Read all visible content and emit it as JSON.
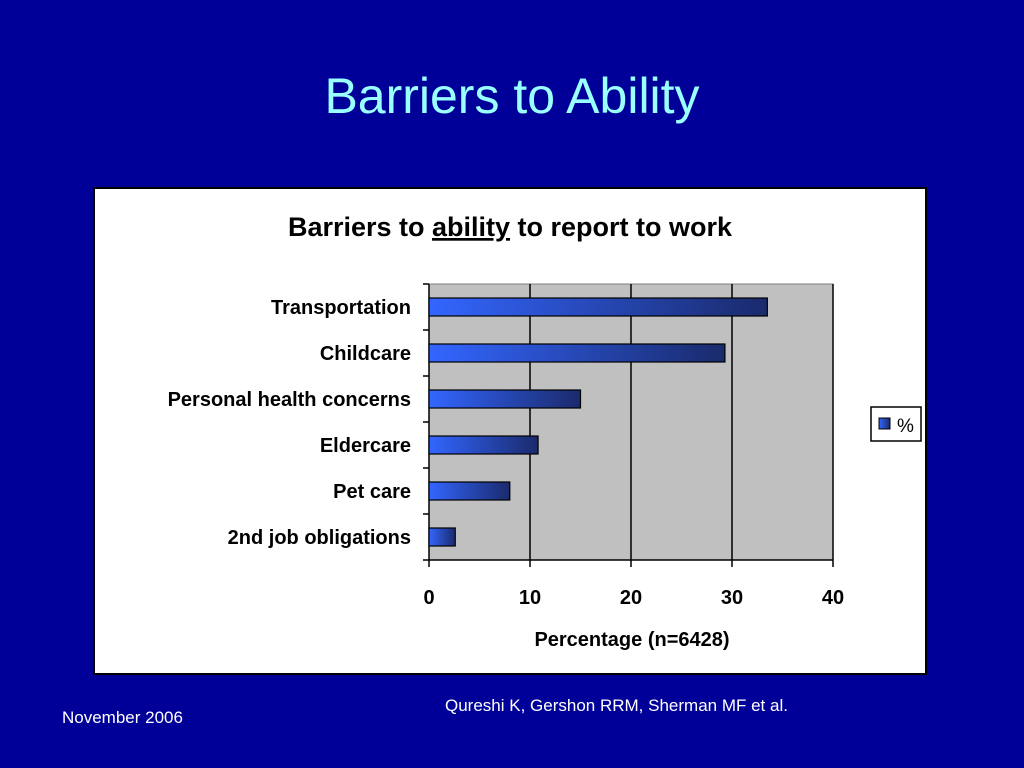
{
  "slide": {
    "title": "Barriers to Ability",
    "date": "November 2006",
    "citation": "Qureshi K, Gershon RRM, Sherman MF et al."
  },
  "chart_data": {
    "type": "bar",
    "orientation": "horizontal",
    "title_parts": [
      "Barriers to ",
      "ability",
      " to report to work"
    ],
    "title_underlined_part": "ability",
    "categories": [
      "Transportation",
      "Childcare",
      "Personal health concerns",
      "Eldercare",
      "Pet care",
      "2nd job obligations"
    ],
    "series": [
      {
        "name": "%",
        "values": [
          33.5,
          29.3,
          15,
          10.8,
          8,
          2.6
        ]
      }
    ],
    "xlabel": "Percentage (n=6428)",
    "xlim": [
      0,
      40
    ],
    "xticks": [
      "0",
      "10",
      "20",
      "30",
      "40"
    ],
    "grid": "vertical",
    "legend": "right",
    "colors": {
      "plot_bg": "#c0c0c0",
      "bar_light": "#3366ff",
      "bar_dark": "#1a2a6c",
      "gridline": "#000000"
    }
  }
}
